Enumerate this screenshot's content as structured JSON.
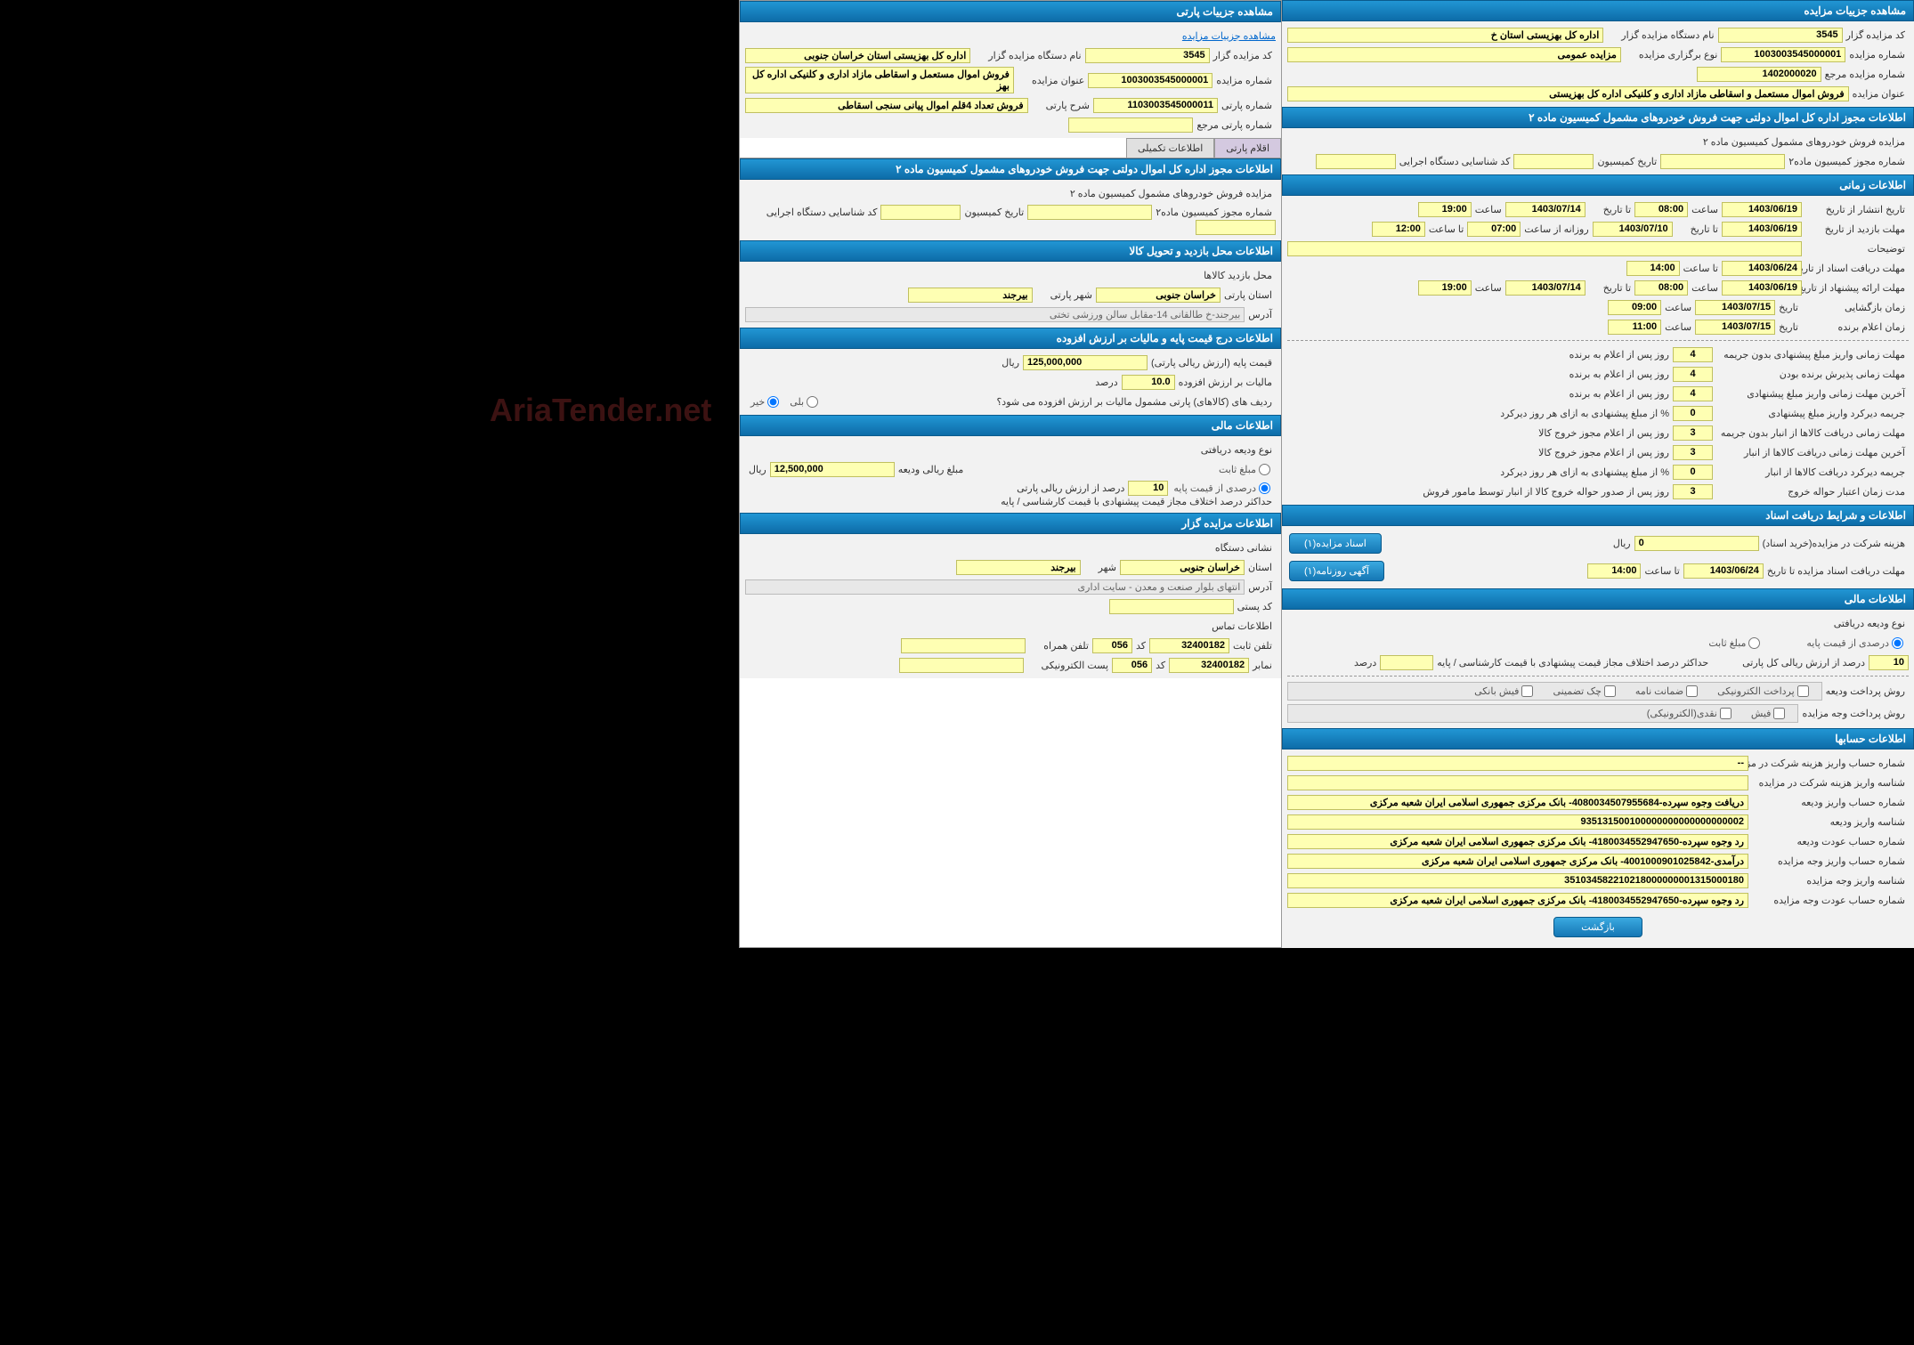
{
  "watermark": "AriaTender.net",
  "panelLeft": {
    "header1": "مشاهده جزییات پارتی",
    "link1": "مشاهده جزییات مزایده",
    "fields1": [
      {
        "label": "کد مزایده گزار",
        "value": "3545",
        "label2": "نام دستگاه مزایده گزار",
        "value2": "اداره کل بهزیستی استان خراسان جنوبی"
      },
      {
        "label": "شماره مزایده",
        "value": "1003003545000001",
        "label2": "عنوان مزایده",
        "value2": "فروش اموال مستعمل و اسقاطی مازاد اداری و کلنیکی اداره کل بهز"
      },
      {
        "label": "شماره پارتی",
        "value": "1103003545000011",
        "label2": "شرح پارتی",
        "value2": "فروش تعداد 4قلم اموال پیانی سنجی اسقاطی"
      },
      {
        "label": "شماره پارتی مرجع",
        "value": ""
      }
    ],
    "tabs": [
      "اقلام پارتی",
      "اطلاعات تکمیلی"
    ],
    "header2": "اطلاعات مجوز اداره کل اموال دولتی جهت فروش خودروهای مشمول کمیسیون ماده ۲",
    "section2_sub": "مزایده فروش خودروهای مشمول کمیسیون ماده ۲",
    "section2_fields": [
      {
        "label": "شماره مجوز کمیسیون ماده۲",
        "value": ""
      },
      {
        "label": "تاریخ کمیسیون",
        "value": ""
      },
      {
        "label": "کد شناسایی دستگاه اجرایی",
        "value": ""
      }
    ],
    "header3": "اطلاعات محل بازدید و تحویل کالا",
    "section3_sub": "محل بازدید کالاها",
    "section3_fields": {
      "province_label": "استان پارتی",
      "province": "خراسان جنوبی",
      "city_label": "شهر پارتی",
      "city": "بیرجند",
      "address_label": "آدرس",
      "address": "بیرجند-خ طالقانی 14-مقابل سالن ورزشی تختی"
    },
    "header4": "اطلاعات درج قیمت پایه و مالیات بر ارزش افزوده",
    "section4": {
      "base_label": "قیمت پایه (ارزش ریالی پارتی)",
      "base": "125,000,000",
      "unit": "ریال",
      "vat_label": "مالیات بر ارزش افزوده",
      "vat": "10.0",
      "vat_unit": "درصد",
      "q_label": "ردیف های (کالاهای) پارتی مشمول مالیات بر ارزش افزوده می شود؟",
      "opt_yes": "بلی",
      "opt_no": "خیر"
    },
    "header5": "اطلاعات مالی",
    "section5": {
      "type_label": "نوع ودیعه دریافتی",
      "opt1_label": "مبلغ ثابت",
      "opt1_amt": "12,500,000",
      "opt1_unit": "ریال",
      "opt1_lbl2": "مبلغ ریالی ودیعه",
      "opt2_label": "درصدی از قیمت پایه",
      "opt2_pct": "10",
      "opt2_lbl2": "درصد از ارزش ریالی پارتی",
      "extra_label": "حداکثر درصد اختلاف مجاز قیمت پیشنهادی با قیمت کارشناسی / پایه",
      "extra_val": ""
    },
    "header6": "اطلاعات مزایده گزار",
    "section6": {
      "addr_label": "نشانی دستگاه",
      "province_label": "استان",
      "province": "خراسان جنوبی",
      "city_label": "شهر",
      "city": "بیرجند",
      "address_label": "آدرس",
      "address": "انتهای بلوار صنعت و معدن - سایت اداری",
      "postal_label": "کد پستی",
      "postal": "",
      "contact_label": "اطلاعات تماس",
      "phone_label": "تلفن ثابت",
      "phone": "32400182",
      "phone_code_label": "کد",
      "phone_code": "056",
      "mobile_label": "تلفن همراه",
      "mobile": "",
      "fax_label": "نمابر",
      "fax": "32400182",
      "fax_code_label": "کد",
      "fax_code": "056",
      "email_label": "پست الکترونیکی",
      "email": ""
    }
  },
  "panelRight": {
    "header1": "مشاهده جزییات مزایده",
    "fields1": [
      {
        "label": "کد مزایده گزار",
        "value": "3545",
        "label2": "نام دستگاه مزایده گزار",
        "value2": "اداره کل بهزیستی استان خ"
      },
      {
        "label": "شماره مزایده",
        "value": "1003003545000001",
        "label2": "نوع برگزاری مزایده",
        "value2": "مزایده عمومی"
      },
      {
        "label": "شماره مزایده مرجع",
        "value": "1402000020"
      }
    ],
    "title_label": "عنوان مزایده",
    "title_value": "فروش اموال مستعمل و اسقاطی مازاد اداری و کلنیکی اداره کل بهزیستی",
    "header2": "اطلاعات مجوز اداره کل اموال دولتی جهت فروش خودروهای مشمول کمیسیون ماده ۲",
    "section2_sub": "مزایده فروش خودروهای مشمول کمیسیون ماده ۲",
    "section2_fields": [
      {
        "label": "شماره مجوز کمیسیون ماده۲",
        "value": ""
      },
      {
        "label": "تاریخ کمیسیون",
        "value": ""
      },
      {
        "label": "کد شناسایی دستگاه اجرایی",
        "value": ""
      }
    ],
    "header3": "اطلاعات زمانی",
    "time_rows": [
      {
        "l1": "تاریخ انتشار از تاریخ",
        "v1": "1403/06/19",
        "l2": "ساعت",
        "v2": "08:00",
        "l3": "تا تاریخ",
        "v3": "1403/07/14",
        "l4": "ساعت",
        "v4": "19:00"
      },
      {
        "l1": "مهلت بازدید از تاریخ",
        "v1": "1403/06/19",
        "l2": "",
        "v2": "",
        "l3": "تا تاریخ",
        "v3": "1403/07/10",
        "l3b": "روزانه از ساعت",
        "v3b": "07:00",
        "l4": "تا ساعت",
        "v4": "12:00"
      },
      {
        "l1": "توضیحات",
        "full": ""
      },
      {
        "l1": "مهلت دریافت اسناد از تاریخ",
        "v1": "1403/06/24",
        "l2": "تا ساعت",
        "v2": "14:00"
      },
      {
        "l1": "مهلت ارائه پیشنهاد از تاریخ",
        "v1": "1403/06/19",
        "l2": "ساعت",
        "v2": "08:00",
        "l3": "تا تاریخ",
        "v3": "1403/07/14",
        "l4": "ساعت",
        "v4": "19:00"
      },
      {
        "l1": "زمان بازگشایی",
        "l1b": "تاریخ",
        "v1": "1403/07/15",
        "l2": "ساعت",
        "v2": "09:00"
      },
      {
        "l1": "زمان اعلام برنده",
        "l1b": "تاریخ",
        "v1": "1403/07/15",
        "l2": "ساعت",
        "v2": "11:00"
      }
    ],
    "deadline_rows": [
      {
        "label": "مهلت زمانی واریز مبلغ پیشنهادی بدون جریمه",
        "value": "4",
        "suffix": "روز پس از اعلام به برنده"
      },
      {
        "label": "مهلت زمانی پذیرش برنده بودن",
        "value": "4",
        "suffix": "روز پس از اعلام به برنده"
      },
      {
        "label": "آخرین مهلت زمانی واریز مبلغ پیشنهادی",
        "value": "4",
        "suffix": "روز پس از اعلام به برنده"
      },
      {
        "label": "جریمه دیرکرد واریز مبلغ پیشنهادی",
        "value": "0",
        "suffix": "% از مبلغ پیشنهادی به ازای هر روز دیرکرد"
      },
      {
        "label": "مهلت زمانی دریافت کالاها از انبار بدون جریمه",
        "value": "3",
        "suffix": "روز پس از اعلام مجوز خروج کالا"
      },
      {
        "label": "آخرین مهلت زمانی دریافت کالاها از انبار",
        "value": "3",
        "suffix": "روز پس از اعلام مجوز خروج کالا"
      },
      {
        "label": "جریمه دیرکرد دریافت کالاها از انبار",
        "value": "0",
        "suffix": "% از مبلغ پیشنهادی به ازای هر روز دیرکرد"
      },
      {
        "label": "مدت زمان اعتبار حواله خروج",
        "value": "3",
        "suffix": "روز پس از صدور حواله خروج کالا از انبار توسط مامور فروش"
      }
    ],
    "header4": "اطلاعات و شرایط دریافت اسناد",
    "section4": {
      "fee_label": "هزینه شرکت در مزایده(خرید اسناد)",
      "fee": "0",
      "fee_unit": "ریال",
      "deadline_label": "مهلت دریافت اسناد مزایده تا تاریخ",
      "deadline_date": "1403/06/24",
      "deadline_time_label": "تا ساعت",
      "deadline_time": "14:00",
      "btn1": "اسناد مزایده(۱)",
      "btn2": "آگهی روزنامه(۱)"
    },
    "header5": "اطلاعات مالی",
    "section5": {
      "type_label": "نوع ودیعه دریافتی",
      "opt1": "درصدی از قیمت پایه",
      "opt2": "مبلغ ثابت",
      "pct": "10",
      "pct_label": "درصد از ارزش ریالی کل پارتی",
      "max_label": "حداکثر درصد اختلاف مجاز قیمت پیشنهادی با قیمت کارشناسی / پایه",
      "max_unit": "درصد",
      "pay_deposit_label": "روش پرداخت ودیعه",
      "pay_opts": [
        "پرداخت الکترونیکی",
        "ضمانت نامه",
        "چک تضمینی",
        "فیش بانکی"
      ],
      "pay_auction_label": "روش پرداخت وجه مزایده",
      "pay_opts2": [
        "فیش",
        "نقدی(الکترونیکی)"
      ]
    },
    "header6": "اطلاعات حسابها",
    "accounts": [
      {
        "label": "شماره حساب واریز هزینه شرکت در مزایده",
        "value": "--"
      },
      {
        "label": "شناسه واریز هزینه شرکت در مزایده",
        "value": ""
      },
      {
        "label": "شماره حساب واریز ودیعه",
        "value": "دریافت وجوه سپرده-4080034507955684- بانک مرکزی جمهوری اسلامی ایران شعبه مرکزی"
      },
      {
        "label": "شناسه واریز ودیعه",
        "value": "935131500100000000000000000002"
      },
      {
        "label": "شماره حساب عودت ودیعه",
        "value": "رد وجوه سپرده-4180034552947650- بانک مرکزی جمهوری اسلامی ایران شعبه مرکزی"
      },
      {
        "label": "شماره حساب واریز وجه مزایده",
        "value": "درآمدی-4001000901025842- بانک مرکزی جمهوری اسلامی ایران شعبه مرکزی"
      },
      {
        "label": "شناسه واریز وجه مزایده",
        "value": "351034582210218000000001315000180"
      },
      {
        "label": "شماره حساب عودت وجه مزایده",
        "value": "رد وجوه سپرده-4180034552947650- بانک مرکزی جمهوری اسلامی ایران شعبه مرکزی"
      }
    ],
    "back_btn": "بازگشت"
  }
}
